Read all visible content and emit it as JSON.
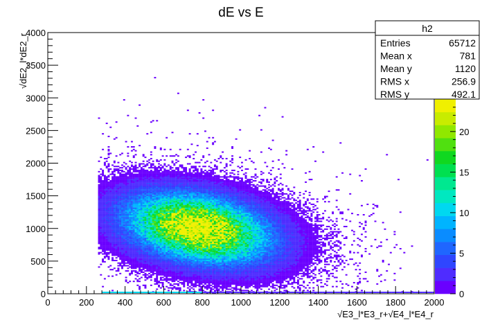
{
  "chart_data": {
    "type": "heatmap",
    "title": "dE vs E",
    "xlabel": "√E3_l*E3_r+√E4_l*E4_r",
    "ylabel": "√dE2_l*dE2_r",
    "xlim": [
      0,
      2000
    ],
    "ylim": [
      0,
      4000
    ],
    "zlim": [
      0,
      24
    ],
    "x_ticks": [
      0,
      200,
      400,
      600,
      800,
      1000,
      1200,
      1400,
      1600,
      1800,
      2000
    ],
    "y_ticks": [
      0,
      500,
      1000,
      1500,
      2000,
      2500,
      3000,
      3500,
      4000
    ],
    "z_ticks": [
      0,
      5,
      10,
      15,
      20
    ],
    "colorscale": [
      "#6a00ff",
      "#4f2cff",
      "#2f46ff",
      "#1f66ff",
      "#0a8cff",
      "#00b4ff",
      "#00d8f0",
      "#00e8c0",
      "#00e890",
      "#00e050",
      "#10d820",
      "#50e010",
      "#90e800",
      "#c8ec00",
      "#f0f000"
    ],
    "distribution": {
      "description_free": true,
      "core_center": [
        780,
        1000
      ],
      "sigma": [
        230,
        330
      ],
      "correlation": -0.3,
      "peak": 24,
      "x_min_populated": 260
    },
    "stats": {
      "title": "h2",
      "rows": [
        {
          "label": "Entries",
          "value": "65712"
        },
        {
          "label": "Mean x",
          "value": "781"
        },
        {
          "label": "Mean y",
          "value": "1120"
        },
        {
          "label": "RMS x",
          "value": "256.9"
        },
        {
          "label": "RMS y",
          "value": "492.1"
        }
      ]
    },
    "grid": false,
    "legend": "top-right"
  }
}
